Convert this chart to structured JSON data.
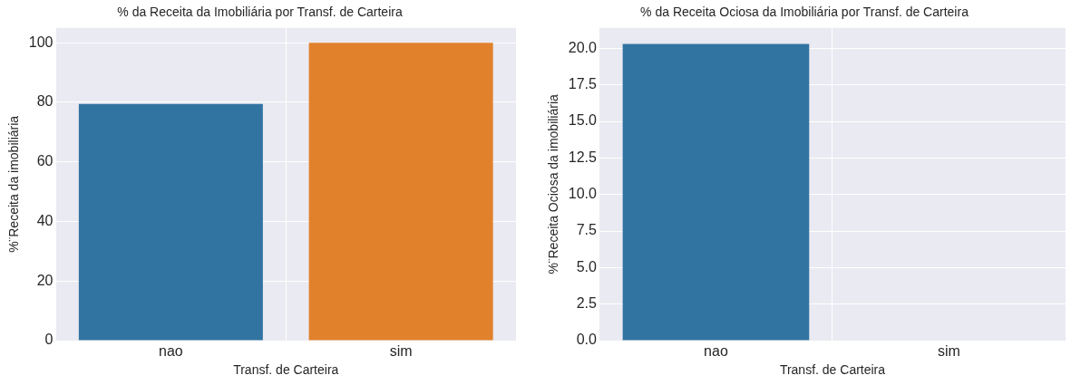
{
  "chart_data": [
    {
      "type": "bar",
      "title": "% da Receita da Imobiliária por Transf. de Carteira",
      "xlabel": "Transf. de Carteira",
      "ylabel": "%¨Receita da imobiliária",
      "categories": [
        "nao",
        "sim"
      ],
      "values": [
        79.5,
        100
      ],
      "colors": [
        "#3274a1",
        "#e1812c"
      ],
      "ylim": [
        0,
        105
      ],
      "yticks": [
        0,
        20,
        40,
        60,
        80,
        100
      ],
      "grid": true,
      "legend": false
    },
    {
      "type": "bar",
      "title": "% da Receita Ociosa da Imobiliária por Transf. de Carteira",
      "xlabel": "Transf. de Carteira",
      "ylabel": "%¨Receita Ociosa da imobiliária",
      "categories": [
        "nao",
        "sim"
      ],
      "values": [
        20.3,
        0
      ],
      "colors": [
        "#3274a1",
        "#e1812c"
      ],
      "ylim": [
        0,
        21.4
      ],
      "yticks": [
        {
          "value": 0,
          "label": "0.0"
        },
        {
          "value": 2.5,
          "label": "2.5"
        },
        {
          "value": 5,
          "label": "5.0"
        },
        {
          "value": 7.5,
          "label": "7.5"
        },
        {
          "value": 10,
          "label": "10.0"
        },
        {
          "value": 12.5,
          "label": "12.5"
        },
        {
          "value": 15,
          "label": "15.0"
        },
        {
          "value": 17.5,
          "label": "17.5"
        },
        {
          "value": 20,
          "label": "20.0"
        }
      ],
      "grid": true,
      "legend": false
    }
  ]
}
